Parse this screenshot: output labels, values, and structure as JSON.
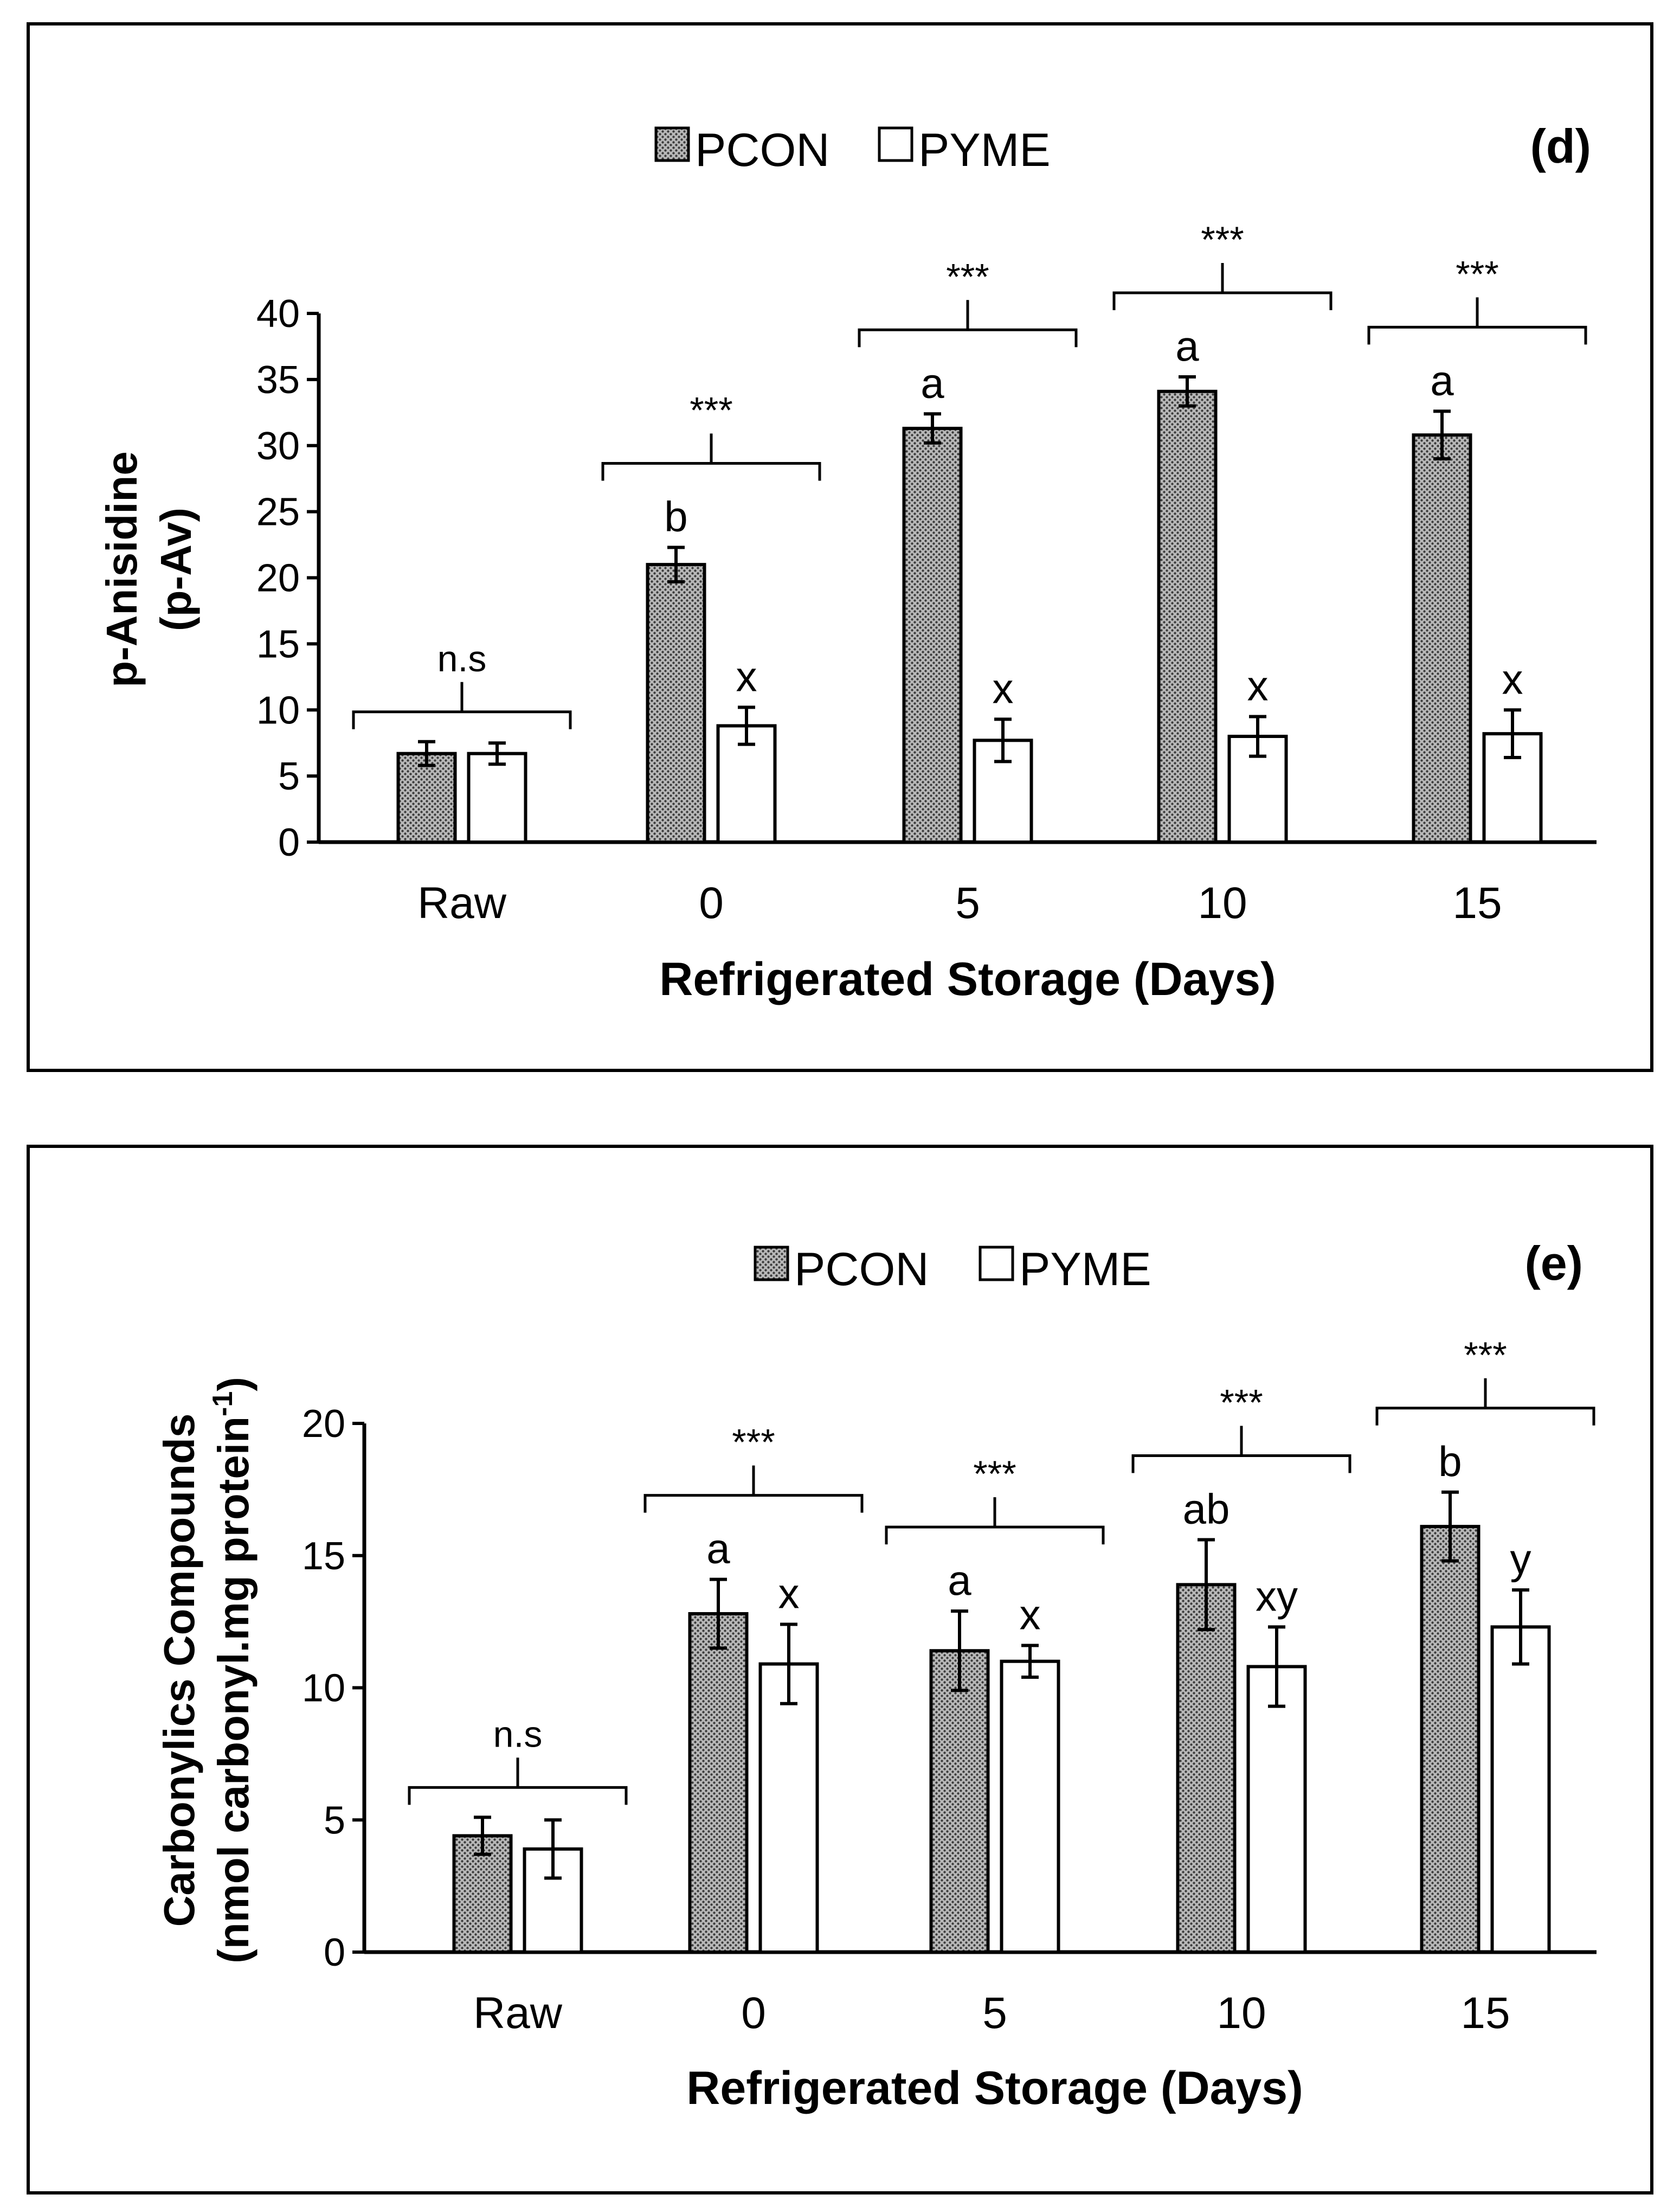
{
  "chart_data": [
    {
      "type": "bar",
      "panel_label": "(d)",
      "title": "",
      "xlabel": "Refrigerated Storage (Days)",
      "ylabel_lines": [
        "p-Anisidine",
        "(p-Av)"
      ],
      "ylim": [
        0,
        40
      ],
      "yticks": [
        0,
        5,
        10,
        15,
        20,
        25,
        30,
        35,
        40
      ],
      "categories": [
        "Raw",
        "0",
        "5",
        "10",
        "15"
      ],
      "legend": [
        "PCON",
        "PYME"
      ],
      "series": [
        {
          "name": "PCON",
          "values": [
            6.7,
            21.0,
            31.3,
            34.1,
            30.8
          ],
          "errors": [
            0.9,
            1.3,
            1.1,
            1.1,
            1.8
          ],
          "letters": [
            "",
            "b",
            "a",
            "a",
            "a"
          ],
          "fill": "pattern-dots"
        },
        {
          "name": "PYME",
          "values": [
            6.7,
            8.8,
            7.7,
            8.0,
            8.2
          ],
          "errors": [
            0.8,
            1.4,
            1.6,
            1.5,
            1.8
          ],
          "letters": [
            "",
            "x",
            "x",
            "x",
            "x"
          ],
          "fill": "#ffffff"
        }
      ],
      "significance": [
        "n.s",
        "***",
        "***",
        "***",
        "***"
      ]
    },
    {
      "type": "bar",
      "panel_label": "(e)",
      "title": "",
      "xlabel": "Refrigerated Storage (Days)",
      "ylabel_lines": [
        "Carbonylics Compounds",
        "(nmol carbonyl.mg protein",
        "-1",
        ")"
      ],
      "ylim": [
        0,
        20
      ],
      "yticks": [
        0,
        5,
        10,
        15,
        20
      ],
      "categories": [
        "Raw",
        "0",
        "5",
        "10",
        "15"
      ],
      "legend": [
        "PCON",
        "PYME"
      ],
      "series": [
        {
          "name": "PCON",
          "values": [
            4.4,
            12.8,
            11.4,
            13.9,
            16.1
          ],
          "errors": [
            0.7,
            1.3,
            1.5,
            1.7,
            1.3
          ],
          "letters": [
            "",
            "a",
            "a",
            "ab",
            "b"
          ],
          "fill": "pattern-dots"
        },
        {
          "name": "PYME",
          "values": [
            3.9,
            10.9,
            11.0,
            10.8,
            12.3
          ],
          "errors": [
            1.1,
            1.5,
            0.6,
            1.5,
            1.4
          ],
          "letters": [
            "",
            "x",
            "x",
            "xy",
            "y"
          ],
          "fill": "#ffffff"
        }
      ],
      "significance": [
        "n.s",
        "***",
        "***",
        "***",
        "***"
      ]
    }
  ]
}
